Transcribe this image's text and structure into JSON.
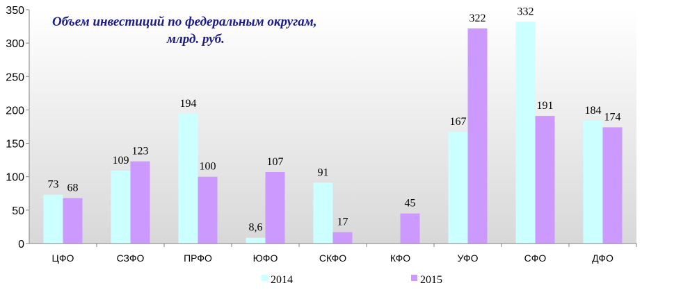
{
  "chart_data": {
    "type": "bar",
    "title_line1": "Объем инвестиций  по федеральным округам,",
    "title_line2": "млрд. руб.",
    "categories": [
      "ЦФО",
      "СЗФО",
      "ПРФО",
      "ЮФО",
      "СКФО",
      "КФО",
      "УФО",
      "СФО",
      "ДФО"
    ],
    "series": [
      {
        "name": "2014",
        "color": "#ccffff",
        "values": [
          73,
          109,
          194,
          8.6,
          91,
          null,
          167,
          332,
          184
        ],
        "labels": [
          "73",
          "109",
          "194",
          "8,6",
          "91",
          "",
          "167",
          "332",
          "184"
        ]
      },
      {
        "name": "2015",
        "color": "#cc99ff",
        "values": [
          68,
          123,
          100,
          107,
          17,
          45,
          322,
          191,
          174
        ],
        "labels": [
          "68",
          "123",
          "100",
          "107",
          "17",
          "45",
          "322",
          "191",
          "174"
        ]
      }
    ],
    "ylim": [
      0,
      350
    ],
    "yticks": [
      0,
      50,
      100,
      150,
      200,
      250,
      300,
      350
    ],
    "grid": false,
    "legend_position": "bottom"
  }
}
